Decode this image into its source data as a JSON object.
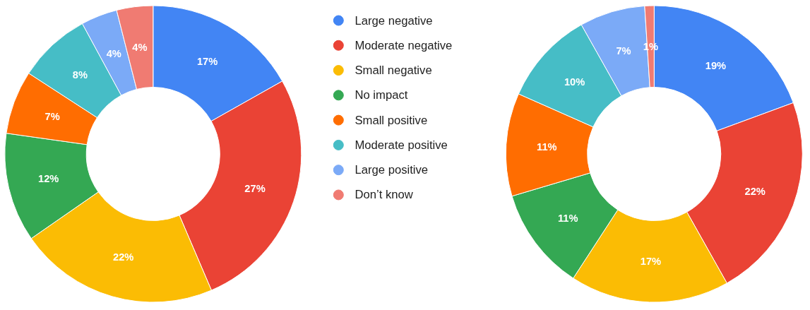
{
  "chart_data": {
    "type": "donut",
    "categories": [
      "Large negative",
      "Moderate negative",
      "Small negative",
      "No impact",
      "Small positive",
      "Moderate positive",
      "Large positive",
      "Don’t know"
    ],
    "colors": [
      "#4285f4",
      "#ea4335",
      "#fbbc04",
      "#34a853",
      "#ff6d01",
      "#46bdc6",
      "#7baaf7",
      "#f07b72"
    ],
    "legend": "right",
    "series": [
      {
        "values": [
          17,
          27,
          22,
          12,
          7,
          8,
          4,
          4
        ],
        "value_labels": [
          "17%",
          "27%",
          "22%",
          "12%",
          "7%",
          "8%",
          "4%",
          "4%"
        ]
      },
      {
        "values": [
          19,
          22,
          17,
          11,
          11,
          10,
          7,
          1
        ],
        "value_labels": [
          "19%",
          "22%",
          "17%",
          "11%",
          "11%",
          "10%",
          "7%",
          "1%"
        ]
      }
    ]
  }
}
